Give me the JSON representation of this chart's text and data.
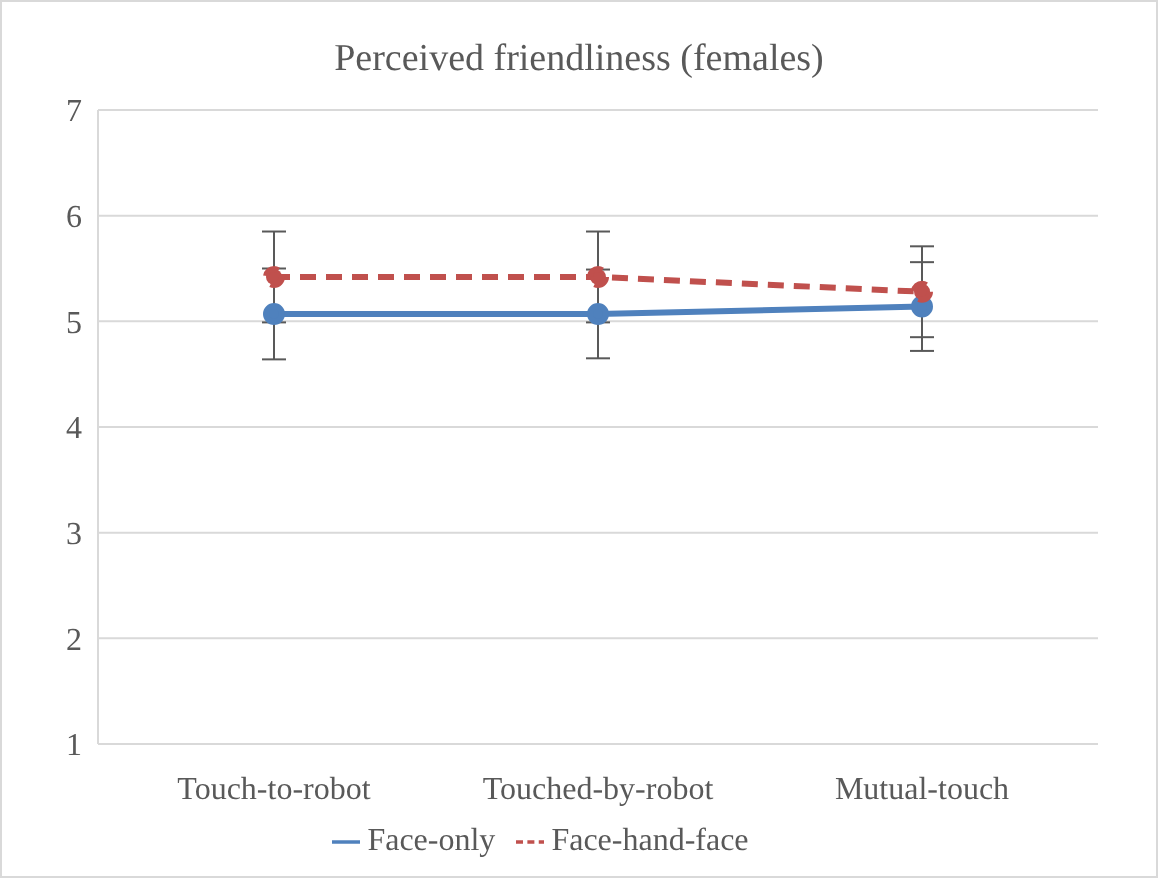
{
  "chart_data": {
    "type": "line",
    "title": "Perceived friendliness (females)",
    "categories": [
      "Touch-to-robot",
      "Touched-by-robot",
      "Mutual-touch"
    ],
    "series": [
      {
        "name": "Face-only",
        "color": "#4f81bd",
        "values": [
          5.07,
          5.07,
          5.14
        ],
        "errors": [
          0.43,
          0.42,
          0.42
        ],
        "line_style": "solid"
      },
      {
        "name": "Face-hand-face",
        "color": "#c0504d",
        "values": [
          5.42,
          5.42,
          5.28
        ],
        "errors": [
          0.43,
          0.43,
          0.43
        ],
        "line_style": "dashed"
      }
    ],
    "ylim": [
      1,
      7
    ],
    "yticks": [
      1,
      2,
      3,
      4,
      5,
      6,
      7
    ],
    "grid": "y",
    "legend": "bottom",
    "marker": "circle"
  }
}
